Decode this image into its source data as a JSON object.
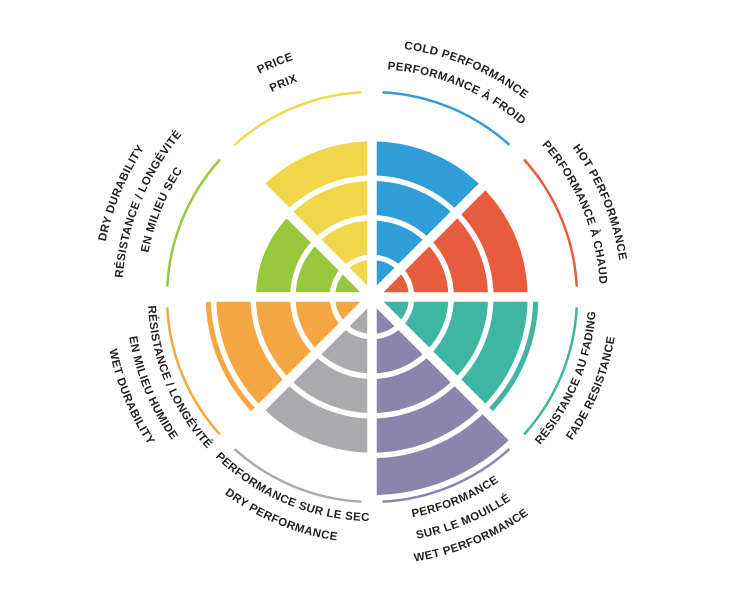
{
  "chart_data": {
    "type": "polar-wheel",
    "title": "",
    "max_rings": 5,
    "ring_grid": [
      1,
      2,
      3,
      4
    ],
    "grid_color": "#FFFFFF",
    "text_color": "#231F20",
    "background": "#FFFFFF",
    "sectors": [
      {
        "id": "cold-performance",
        "start_deg": 0,
        "end_deg": 45,
        "value": 4,
        "color": "#2E9DD8",
        "label_side": "top",
        "label_lines": [
          "COLD PERFORMANCE",
          "PERFORMANCE À FROID"
        ]
      },
      {
        "id": "hot-performance",
        "start_deg": 45,
        "end_deg": 90,
        "value": 4,
        "color": "#E75C3C",
        "label_side": "top",
        "label_lines": [
          "HOT PERFORMANCE",
          "PERFORMANCE À CHAUD"
        ]
      },
      {
        "id": "fade-resistance",
        "start_deg": 90,
        "end_deg": 135,
        "value": 4.2,
        "color": "#3FB6A2",
        "label_side": "bottom",
        "label_lines": [
          "RÉSISTANCE AU FADING",
          "FADE RESISTANCE"
        ]
      },
      {
        "id": "wet-performance",
        "start_deg": 135,
        "end_deg": 180,
        "value": 5,
        "color": "#8B85AE",
        "label_side": "bottom",
        "label_lines": [
          "PERFORMANCE",
          "SUR LE MOUILLÉ",
          "WET PERFORMANCE"
        ]
      },
      {
        "id": "dry-performance",
        "start_deg": 180,
        "end_deg": 225,
        "value": 4,
        "color": "#ABABAE",
        "label_side": "bottom",
        "label_lines": [
          "PERFORMANCE SUR LE SEC",
          "DRY PERFORMANCE"
        ]
      },
      {
        "id": "wet-durability",
        "start_deg": 225,
        "end_deg": 270,
        "value": 4.2,
        "color": "#F7A644",
        "label_side": "bottom",
        "label_lines": [
          "RÉSISTANCE / LONGÉVITÉ",
          "EN MILIEU HUMIDE",
          "WET DURABILITY"
        ]
      },
      {
        "id": "dry-durability",
        "start_deg": 270,
        "end_deg": 315,
        "value": 3,
        "color": "#97C83D",
        "label_side": "top",
        "label_lines": [
          "DRY DURABILITY",
          "RÉSISTANCE / LONGÉVITÉ",
          "EN MILIEU SEC"
        ]
      },
      {
        "id": "price",
        "start_deg": 315,
        "end_deg": 360,
        "value": 4,
        "color": "#F2D74A",
        "label_side": "top",
        "label_lines": [
          "PRICE",
          "PRIX"
        ]
      }
    ]
  }
}
